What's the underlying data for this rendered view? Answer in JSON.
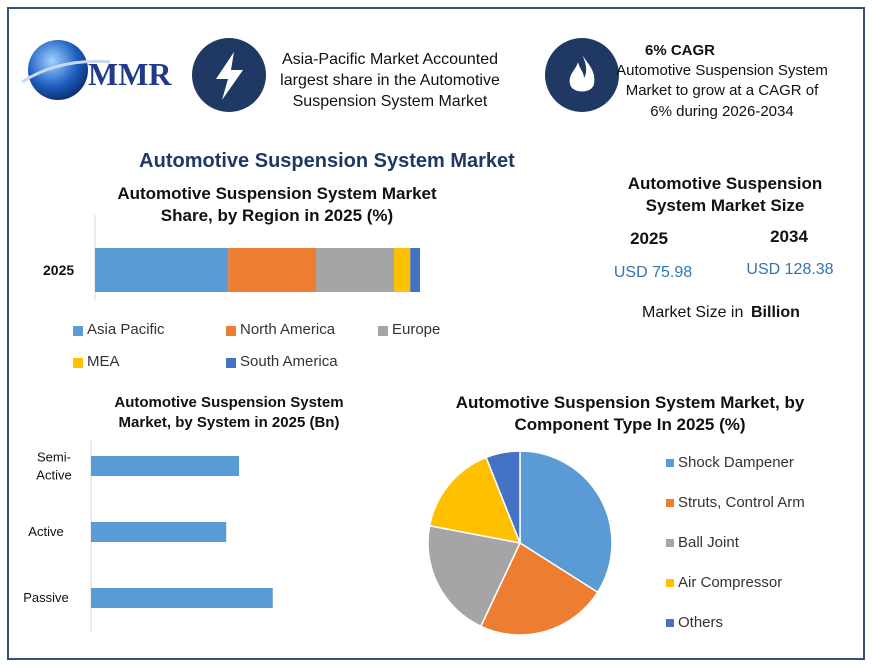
{
  "header": {
    "logo": "MMR",
    "highlight_1": "Asia-Pacific Market Accounted largest share in the Automotive Suspension System Market",
    "highlight_2_title": "6% CAGR",
    "highlight_2": "Automotive Suspension System Market to grow at a CAGR of 6% during 2026-2034"
  },
  "main_title": "Automotive Suspension System Market",
  "market_size": {
    "title": "Automotive Suspension System Market Size",
    "year_1": "2025",
    "year_2": "2034",
    "value_1": "USD 75.98",
    "value_2": "USD 128.38",
    "note": "Market Size in",
    "unit": "Billion"
  },
  "chart_data": [
    {
      "type": "stacked-bar",
      "title": "Automotive Suspension System Market Share, by Region in 2025 (%)",
      "categories": [
        "2025"
      ],
      "series": [
        {
          "name": "Asia Pacific",
          "color": "#5b9bd5",
          "values": [
            41
          ]
        },
        {
          "name": "North America",
          "color": "#ed7d31",
          "values": [
            27
          ]
        },
        {
          "name": "Europe",
          "color": "#a5a5a5",
          "values": [
            24
          ]
        },
        {
          "name": "MEA",
          "color": "#ffc000",
          "values": [
            5
          ]
        },
        {
          "name": "South America",
          "color": "#4472c4",
          "values": [
            3
          ]
        }
      ]
    },
    {
      "type": "bar",
      "title": "Automotive Suspension System Market, by System in 2025 (Bn)",
      "categories": [
        "Semi-Active",
        "Active",
        "Passive"
      ],
      "values": [
        24.2,
        22.1,
        29.7
      ],
      "color": "#5b9bd5"
    },
    {
      "type": "pie",
      "title": "Automotive Suspension System Market, by Component Type In 2025 (%)",
      "categories": [
        "Shock Dampener",
        "Struts, Control Arm",
        "Ball Joint",
        "Air Compressor",
        "Others"
      ],
      "values": [
        34,
        23,
        21,
        16,
        6
      ],
      "colors": [
        "#5b9bd5",
        "#ed7d31",
        "#a5a5a5",
        "#ffc000",
        "#4472c4"
      ]
    }
  ]
}
